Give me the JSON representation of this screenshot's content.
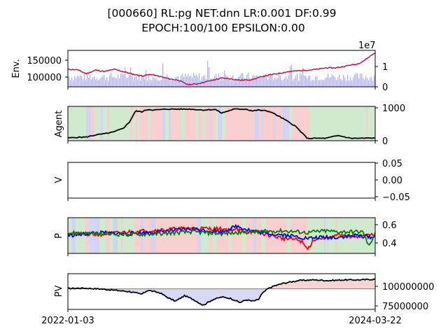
{
  "figure": {
    "title_line1": "[000660] RL:pg NET:dnn LR:0.001 DF:0.99",
    "title_line2": "EPOCH:100/100 EPSILON:0.00"
  },
  "chart_data": [
    {
      "type": "line",
      "panel": "env",
      "ylabel": "Env.",
      "left_ticks": [
        "150000",
        "100000"
      ],
      "left_tick_values": [
        150000,
        100000
      ],
      "ylim_left": [
        78000,
        178000
      ],
      "right_ticks": [
        "1",
        "0"
      ],
      "right_tick_values": [
        1,
        0
      ],
      "right_scale_label": "1e7",
      "ylim_right": [
        0,
        1.8
      ],
      "x_start": "2022-01-03",
      "x_end": "2024-03-22",
      "series": [
        {
          "name": "",
          "kind": "price-line",
          "color": "#ff0000",
          "x": [
            0,
            0.03,
            0.06,
            0.09,
            0.12,
            0.15,
            0.18,
            0.21,
            0.24,
            0.27,
            0.3,
            0.33,
            0.36,
            0.39,
            0.42,
            0.45,
            0.48,
            0.5,
            0.53,
            0.56,
            0.6,
            0.64,
            0.68,
            0.72,
            0.75,
            0.78,
            0.81,
            0.84,
            0.87,
            0.9,
            0.92,
            0.94,
            0.96,
            0.98,
            1.0
          ],
          "values": [
            126000,
            125000,
            114000,
            124000,
            120000,
            126000,
            120000,
            113000,
            108000,
            112000,
            106000,
            100000,
            96000,
            84000,
            86000,
            92000,
            98000,
            102000,
            100000,
            96000,
            98000,
            108000,
            114000,
            120000,
            122000,
            124000,
            126000,
            130000,
            130000,
            134000,
            138000,
            140000,
            148000,
            160000,
            172000
          ]
        },
        {
          "name": "",
          "kind": "volume-bars",
          "color": "#b0b0f0",
          "note": "volume shown as light blue bars on right axis (×1e7)",
          "typical": 0.5,
          "max": 1.3
        }
      ]
    },
    {
      "type": "line",
      "panel": "agent",
      "ylabel": "Agent",
      "right_ticks": [
        "1000",
        "0"
      ],
      "right_tick_values": [
        1000,
        0
      ],
      "ylim_right": [
        -50,
        1080
      ],
      "series": [
        {
          "name": "",
          "color": "#000000",
          "x": [
            0,
            0.03,
            0.06,
            0.09,
            0.12,
            0.15,
            0.18,
            0.2,
            0.22,
            0.24,
            0.26,
            0.28,
            0.32,
            0.36,
            0.4,
            0.44,
            0.48,
            0.5,
            0.54,
            0.58,
            0.6,
            0.62,
            0.64,
            0.66,
            0.7,
            0.74,
            0.78,
            0.8,
            0.84,
            0.88,
            0.92,
            0.96,
            1.0
          ],
          "values": [
            40,
            60,
            70,
            140,
            180,
            240,
            360,
            560,
            930,
            900,
            980,
            960,
            990,
            990,
            990,
            960,
            980,
            860,
            990,
            990,
            930,
            960,
            940,
            900,
            680,
            430,
            20,
            30,
            30,
            120,
            30,
            30,
            40
          ]
        }
      ]
    },
    {
      "type": "line",
      "panel": "v",
      "ylabel": "V",
      "right_ticks": [
        "0.05",
        "0.00",
        "−0.05"
      ],
      "right_tick_values": [
        0.05,
        0.0,
        -0.05
      ],
      "ylim_right": [
        -0.055,
        0.055
      ],
      "series": []
    },
    {
      "type": "line",
      "panel": "p",
      "ylabel": "P",
      "right_ticks": [
        "0.6",
        "0.4"
      ],
      "right_tick_values": [
        0.6,
        0.4
      ],
      "ylim_right": [
        0.29,
        0.67
      ],
      "series": [
        {
          "name": "",
          "color": "#ff0000",
          "x": [
            0,
            0.1,
            0.2,
            0.3,
            0.4,
            0.5,
            0.55,
            0.6,
            0.65,
            0.7,
            0.74,
            0.76,
            0.78,
            0.8,
            0.84,
            0.88,
            0.92,
            0.96,
            1.0
          ],
          "values": [
            0.5,
            0.49,
            0.52,
            0.54,
            0.56,
            0.55,
            0.54,
            0.52,
            0.49,
            0.45,
            0.44,
            0.42,
            0.33,
            0.44,
            0.46,
            0.48,
            0.47,
            0.48,
            0.49
          ]
        },
        {
          "name": "",
          "color": "#0000ff",
          "x": [
            0,
            0.1,
            0.2,
            0.3,
            0.4,
            0.5,
            0.55,
            0.6,
            0.65,
            0.7,
            0.74,
            0.78,
            0.82,
            0.86,
            0.9,
            0.94,
            0.97,
            1.0
          ],
          "values": [
            0.48,
            0.51,
            0.5,
            0.52,
            0.55,
            0.52,
            0.58,
            0.53,
            0.5,
            0.49,
            0.47,
            0.45,
            0.46,
            0.46,
            0.47,
            0.48,
            0.47,
            0.46
          ]
        },
        {
          "name": "",
          "color": "#008000",
          "x": [
            0,
            0.1,
            0.2,
            0.3,
            0.4,
            0.5,
            0.6,
            0.7,
            0.75,
            0.78,
            0.8,
            0.84,
            0.88,
            0.92,
            0.96,
            0.98,
            1.0
          ],
          "values": [
            0.51,
            0.5,
            0.49,
            0.5,
            0.52,
            0.5,
            0.52,
            0.53,
            0.52,
            0.51,
            0.52,
            0.53,
            0.52,
            0.52,
            0.52,
            0.36,
            0.52
          ]
        }
      ]
    },
    {
      "type": "area",
      "panel": "pv",
      "ylabel": "PV",
      "right_ticks": [
        "100000000",
        "75000000"
      ],
      "right_tick_values": [
        100000000,
        75000000
      ],
      "ylim_right": [
        70000000,
        122000000
      ],
      "baseline": 100000000,
      "x_start_label": "2022-01-03",
      "x_end_label": "2024-03-22",
      "series": [
        {
          "name": "",
          "color": "#000000",
          "x": [
            0,
            0.05,
            0.1,
            0.15,
            0.2,
            0.24,
            0.26,
            0.3,
            0.33,
            0.35,
            0.38,
            0.41,
            0.44,
            0.47,
            0.5,
            0.53,
            0.56,
            0.58,
            0.6,
            0.62,
            0.63,
            0.65,
            0.67,
            0.7,
            0.75,
            0.8,
            0.85,
            0.9,
            0.95,
            1.0
          ],
          "values": [
            100500000,
            101000000,
            100000000,
            98000000,
            96000000,
            92000000,
            98000000,
            94000000,
            86000000,
            82000000,
            90000000,
            84000000,
            76000000,
            84000000,
            88000000,
            86000000,
            80000000,
            84000000,
            82000000,
            84000000,
            92000000,
            100000000,
            104000000,
            108000000,
            112000000,
            113000000,
            112000000,
            113000000,
            113000000,
            114000000
          ]
        }
      ]
    }
  ]
}
